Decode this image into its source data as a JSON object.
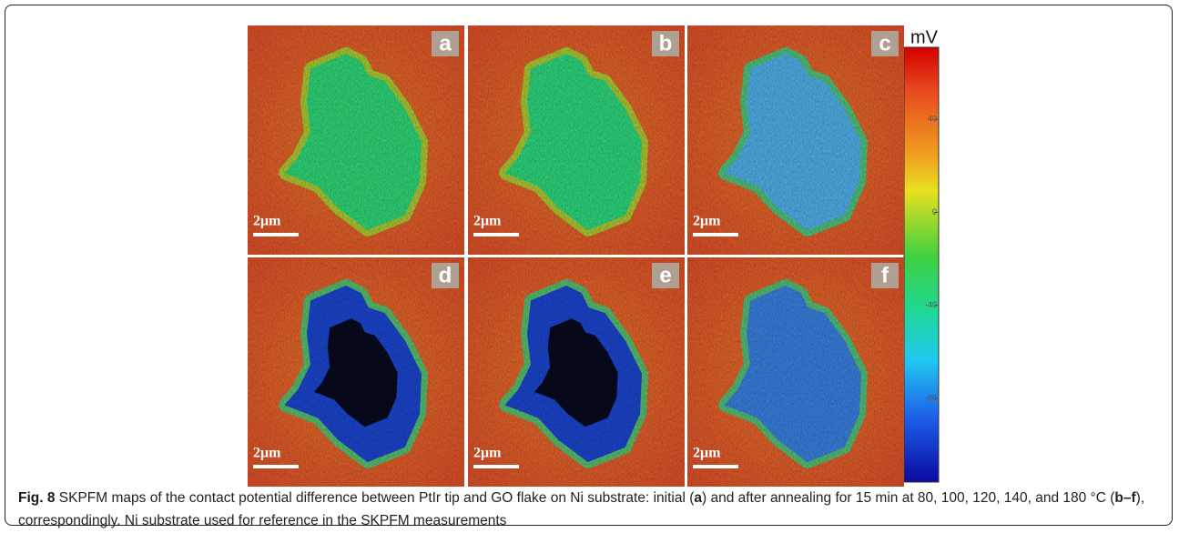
{
  "figure": {
    "panels": [
      {
        "label": "a",
        "scale": "2μm"
      },
      {
        "label": "b",
        "scale": "2μm"
      },
      {
        "label": "c",
        "scale": "2μm"
      },
      {
        "label": "d",
        "scale": "2μm"
      },
      {
        "label": "e",
        "scale": "2μm"
      },
      {
        "label": "f",
        "scale": "2μm"
      }
    ],
    "colorbar": {
      "unit": "mV",
      "lim": [
        71,
        -116
      ],
      "ticks": [
        40,
        0,
        -40,
        -80
      ]
    }
  },
  "caption": {
    "label": "Fig. 8",
    "text_1": " SKPFM maps of the contact potential difference between PtIr tip and GO flake on Ni substrate: initial (",
    "bold_1": "a",
    "text_2": ") and after annealing for 15 min at 80, 100, 120, 140, and 180 °C (",
    "bold_2": "b–f",
    "text_3": "), correspondingly. Ni substrate used for reference in the SKPFM measurements"
  }
}
